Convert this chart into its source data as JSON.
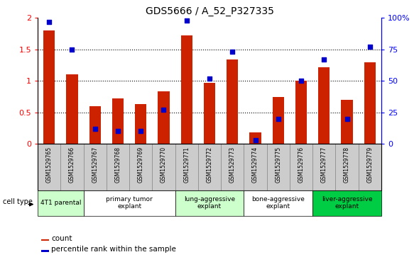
{
  "title": "GDS5666 / A_52_P327335",
  "samples": [
    "GSM1529765",
    "GSM1529766",
    "GSM1529767",
    "GSM1529768",
    "GSM1529769",
    "GSM1529770",
    "GSM1529771",
    "GSM1529772",
    "GSM1529773",
    "GSM1529774",
    "GSM1529775",
    "GSM1529776",
    "GSM1529777",
    "GSM1529778",
    "GSM1529779"
  ],
  "counts": [
    1.8,
    1.1,
    0.6,
    0.72,
    0.63,
    0.84,
    1.72,
    0.97,
    1.34,
    0.18,
    0.75,
    1.0,
    1.22,
    0.7,
    1.3
  ],
  "percentiles": [
    97,
    75,
    12,
    10,
    10,
    27,
    98,
    52,
    73,
    3,
    20,
    50,
    67,
    20,
    77
  ],
  "ylim_left": [
    0,
    2
  ],
  "ylim_right": [
    0,
    100
  ],
  "yticks_left": [
    0,
    0.5,
    1.0,
    1.5,
    2.0
  ],
  "ytick_labels_left": [
    "0",
    "0.5",
    "1",
    "1.5",
    "2"
  ],
  "yticks_right": [
    0,
    25,
    50,
    75,
    100
  ],
  "ytick_labels_right": [
    "0",
    "25",
    "50",
    "75",
    "100%"
  ],
  "bar_color": "#CC2200",
  "dot_color": "#0000CC",
  "legend_count_label": "count",
  "legend_percentile_label": "percentile rank within the sample",
  "cell_type_label": "cell type",
  "background_color": "#FFFFFF",
  "bar_width": 0.5,
  "dot_size": 22,
  "groups": [
    {
      "label": "4T1 parental",
      "indices": [
        0,
        1
      ],
      "color": "#CCFFCC"
    },
    {
      "label": "primary tumor\nexplant",
      "indices": [
        2,
        3,
        4,
        5
      ],
      "color": "#FFFFFF"
    },
    {
      "label": "lung-aggressive\nexplant",
      "indices": [
        6,
        7,
        8
      ],
      "color": "#CCFFCC"
    },
    {
      "label": "bone-aggressive\nexplant",
      "indices": [
        9,
        10,
        11
      ],
      "color": "#FFFFFF"
    },
    {
      "label": "liver-aggressive\nexplant",
      "indices": [
        12,
        13,
        14
      ],
      "color": "#00CC44"
    }
  ]
}
